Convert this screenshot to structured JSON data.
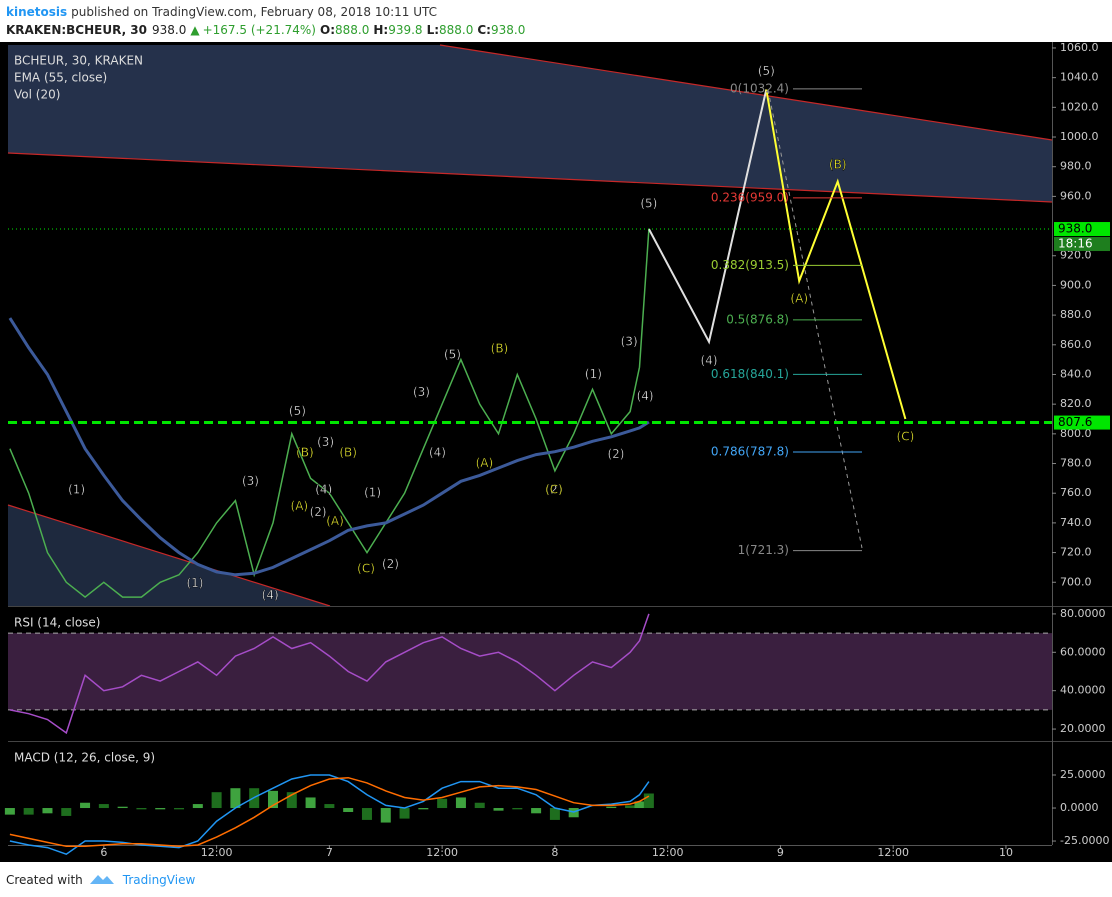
{
  "header": {
    "author": "kinetosis",
    "published": "published on TradingView.com, February 08, 2018 10:11 UTC"
  },
  "ticker": {
    "symbol": "KRAKEN:BCHEUR, 30",
    "last": "938.0",
    "arrow": "▲",
    "change": "+167.5 (+21.74%)",
    "ohlc": [
      {
        "label": "O:",
        "value": "888.0"
      },
      {
        "label": "H:",
        "value": "939.8"
      },
      {
        "label": "L:",
        "value": "888.0"
      },
      {
        "label": "C:",
        "value": "938.0"
      }
    ]
  },
  "footer": {
    "created": "Created with",
    "brand": "TradingView"
  },
  "chart_data": [
    {
      "type": "line",
      "title": "BCHEUR, 30, KRAKEN",
      "volume_label": "Vol (20)",
      "x": [
        14,
        16,
        18,
        20,
        22,
        24,
        26,
        28,
        30,
        32,
        34,
        36,
        38,
        40,
        42,
        44,
        46,
        48,
        50,
        52,
        54,
        56,
        58,
        60,
        62,
        64,
        66,
        68,
        70,
        72,
        74,
        76,
        78,
        80,
        81,
        82
      ],
      "xlim": [
        13.8,
        124.9
      ],
      "ylim": [
        684,
        1062
      ],
      "yticks": [
        {
          "value": 700,
          "label": "700.0"
        },
        {
          "value": 720,
          "label": "720.0"
        },
        {
          "value": 740,
          "label": "740.0"
        },
        {
          "value": 760,
          "label": "760.0"
        },
        {
          "value": 780,
          "label": "780.0"
        },
        {
          "value": 800,
          "label": "800.0"
        },
        {
          "value": 820,
          "label": "820.0"
        },
        {
          "value": 840,
          "label": "840.0"
        },
        {
          "value": 860,
          "label": "860.0"
        },
        {
          "value": 880,
          "label": "880.0"
        },
        {
          "value": 900,
          "label": "900.0"
        },
        {
          "value": 920,
          "label": "920.0"
        },
        {
          "value": 960,
          "label": "960.0"
        },
        {
          "value": 980,
          "label": "980.0"
        },
        {
          "value": 1000,
          "label": "1000.0"
        },
        {
          "value": 1020,
          "label": "1020.0"
        },
        {
          "value": 1040,
          "label": "1040.0"
        },
        {
          "value": 1060,
          "label": "1060.0"
        }
      ],
      "series": [
        {
          "color": "#4caf50",
          "values": [
            790,
            760,
            720,
            700,
            690,
            700,
            690,
            690,
            700,
            705,
            720,
            740,
            755,
            705,
            740,
            800,
            770,
            760,
            740,
            720,
            740,
            760,
            790,
            820,
            850,
            820,
            800,
            840,
            810,
            775,
            800,
            830,
            800,
            815,
            845,
            938
          ]
        },
        {
          "name": "EMA (55, close)",
          "color": "#3c5a9a",
          "values": [
            878,
            858,
            840,
            815,
            790,
            772,
            755,
            742,
            730,
            720,
            712,
            707,
            705,
            706,
            710,
            716,
            722,
            728,
            735,
            738,
            740,
            746,
            752,
            760,
            768,
            772,
            777,
            782,
            786,
            788,
            791,
            795,
            798,
            802,
            804,
            808
          ]
        }
      ],
      "projections": [
        {
          "color": "#e0e0e0",
          "x": [
            82,
            88.4,
            94.5
          ],
          "values": [
            938,
            862,
            1032
          ]
        },
        {
          "color": "#ffff33",
          "x": [
            94.5,
            98,
            102.1,
            109.3
          ],
          "values": [
            1032,
            903,
            970,
            810
          ]
        }
      ],
      "fib_levels": [
        {
          "label": "0(1032.4)",
          "value": 1032.4,
          "color": "#888888"
        },
        {
          "label": "0.236(959.0)",
          "value": 959.0,
          "color": "#e53935"
        },
        {
          "label": "0.382(913.5)",
          "value": 913.5,
          "color": "#9acd32"
        },
        {
          "label": "0.5(876.8)",
          "value": 876.8,
          "color": "#4caf50"
        },
        {
          "label": "0.618(840.1)",
          "value": 840.1,
          "color": "#26a69a"
        },
        {
          "label": "0.786(787.8)",
          "value": 787.8,
          "color": "#42a5f5"
        },
        {
          "label": "1(721.3)",
          "value": 721.3,
          "color": "#888888"
        }
      ],
      "price_labels": [
        {
          "label": "938.0",
          "value": 938.0,
          "style": "dotted",
          "countdown": "18:16"
        },
        {
          "label": "807.6",
          "value": 807.6,
          "style": "dashed"
        }
      ],
      "level_color": "#00e600",
      "annotations": [
        {
          "text": "(5)",
          "x": 94.5,
          "y": 1044,
          "color": "#ffffff"
        },
        {
          "text": "(5)",
          "x": 82.0,
          "y": 955,
          "color": "#ffffff"
        },
        {
          "text": "(B)",
          "x": 102.1,
          "y": 981,
          "color": "#ffff33"
        },
        {
          "text": "(A)",
          "x": 98.0,
          "y": 891,
          "color": "#ffff33"
        },
        {
          "text": "(4)",
          "x": 88.4,
          "y": 849,
          "color": "#ffffff"
        },
        {
          "text": "(C)",
          "x": 109.3,
          "y": 798,
          "color": "#ffff33"
        },
        {
          "text": "(3)",
          "x": 79.9,
          "y": 862,
          "color": "#ffffff"
        },
        {
          "text": "(4)",
          "x": 81.6,
          "y": 825,
          "color": "#ffffff"
        },
        {
          "text": "(1)",
          "x": 76.1,
          "y": 840,
          "color": "#ffffff"
        },
        {
          "text": "(2)",
          "x": 78.5,
          "y": 786,
          "color": "#ffffff"
        },
        {
          "text": "(B)",
          "x": 66.1,
          "y": 857,
          "color": "#ffff33"
        },
        {
          "text": "(A)",
          "x": 64.5,
          "y": 780,
          "color": "#ffff33"
        },
        {
          "text": "(5)",
          "x": 61.1,
          "y": 853,
          "color": "#ffffff"
        },
        {
          "text": "(3)",
          "x": 57.8,
          "y": 828,
          "color": "#ffffff"
        },
        {
          "text": "(4)",
          "x": 59.5,
          "y": 787,
          "color": "#ffffff"
        },
        {
          "text": "(2)",
          "x": 71.9,
          "y": 762,
          "color": "#ffffff"
        },
        {
          "text": "(C)",
          "x": 71.9,
          "y": 762,
          "color": "#ffff33"
        },
        {
          "text": "(1)",
          "x": 52.6,
          "y": 760,
          "color": "#ffffff"
        },
        {
          "text": "(2)",
          "x": 54.5,
          "y": 712,
          "color": "#ffffff"
        },
        {
          "text": "(C)",
          "x": 51.9,
          "y": 709,
          "color": "#ffff33"
        },
        {
          "text": "(B)",
          "x": 50.0,
          "y": 787,
          "color": "#ffff33"
        },
        {
          "text": "(5)",
          "x": 44.6,
          "y": 815,
          "color": "#ffffff"
        },
        {
          "text": "(B)",
          "x": 45.4,
          "y": 787,
          "color": "#ffff33"
        },
        {
          "text": "(3)",
          "x": 39.6,
          "y": 768,
          "color": "#ffffff"
        },
        {
          "text": "(4)",
          "x": 41.7,
          "y": 691,
          "color": "#ffffff"
        },
        {
          "text": "(1)",
          "x": 33.7,
          "y": 699,
          "color": "#ffffff"
        },
        {
          "text": "(1)",
          "x": 21.1,
          "y": 762,
          "color": "#ffffff"
        },
        {
          "text": "(A)",
          "x": 44.8,
          "y": 751,
          "color": "#ffff33"
        },
        {
          "text": "(A)",
          "x": 48.6,
          "y": 741,
          "color": "#ffff33"
        },
        {
          "text": "(3)",
          "x": 47.6,
          "y": 794,
          "color": "#ffffff"
        },
        {
          "text": "(2)",
          "x": 46.8,
          "y": 747,
          "color": "#ffffff"
        },
        {
          "text": "(4)",
          "x": 47.4,
          "y": 762,
          "color": "#ffffff"
        }
      ]
    },
    {
      "type": "line",
      "title": "RSI (14, close)",
      "x": [
        14,
        16,
        18,
        20,
        22,
        24,
        26,
        28,
        30,
        32,
        34,
        36,
        38,
        40,
        42,
        44,
        46,
        48,
        50,
        52,
        54,
        56,
        58,
        60,
        62,
        64,
        66,
        68,
        70,
        72,
        74,
        76,
        78,
        80,
        81,
        82
      ],
      "xlim": [
        13.8,
        124.9
      ],
      "ylim": [
        14.3,
        83.6
      ],
      "yticks": [
        {
          "value": 20,
          "label": "20.0000"
        },
        {
          "value": 40,
          "label": "40.0000"
        },
        {
          "value": 60,
          "label": "60.0000"
        },
        {
          "value": 80,
          "label": "80.0000"
        }
      ],
      "bands": [
        30,
        70
      ],
      "band_color": "#3a1f3f",
      "series": [
        {
          "color": "#a64dc8",
          "values": [
            30,
            28,
            25,
            18,
            48,
            40,
            42,
            48,
            45,
            50,
            55,
            48,
            58,
            62,
            68,
            62,
            65,
            58,
            50,
            45,
            55,
            60,
            65,
            68,
            62,
            58,
            60,
            55,
            48,
            40,
            48,
            55,
            52,
            60,
            66,
            80
          ]
        }
      ]
    },
    {
      "type": "line",
      "title": "MACD (12, 26, close, 9)",
      "x": [
        14,
        16,
        18,
        20,
        22,
        24,
        26,
        28,
        30,
        32,
        34,
        36,
        38,
        40,
        42,
        44,
        46,
        48,
        50,
        52,
        54,
        56,
        58,
        60,
        62,
        64,
        66,
        68,
        70,
        72,
        74,
        76,
        78,
        80,
        81,
        82
      ],
      "xlim": [
        13.8,
        124.9
      ],
      "ylim": [
        -28,
        50
      ],
      "yticks": [
        {
          "value": -25,
          "label": "-25.0000"
        },
        {
          "value": 0,
          "label": "0.0000"
        },
        {
          "value": 25,
          "label": "25.0000"
        }
      ],
      "xticks": [
        {
          "value": 24,
          "label": "6"
        },
        {
          "value": 36,
          "label": "12:00"
        },
        {
          "value": 48,
          "label": "7"
        },
        {
          "value": 60,
          "label": "12:00"
        },
        {
          "value": 72,
          "label": "8"
        },
        {
          "value": 84,
          "label": "12:00"
        },
        {
          "value": 96,
          "label": "9"
        },
        {
          "value": 108,
          "label": "12:00"
        },
        {
          "value": 120,
          "label": "10"
        }
      ],
      "series": [
        {
          "color": "#2196f3",
          "values": [
            -25,
            -28,
            -30,
            -35,
            -25,
            -25,
            -26,
            -28,
            -29,
            -30,
            -25,
            -10,
            0,
            8,
            15,
            22,
            25,
            25,
            20,
            10,
            2,
            0,
            5,
            15,
            20,
            20,
            15,
            15,
            10,
            0,
            -3,
            2,
            3,
            5,
            10,
            20
          ]
        },
        {
          "color": "#ff6d00",
          "values": [
            -20,
            -23,
            -26,
            -29,
            -29,
            -28,
            -27,
            -27,
            -28,
            -29,
            -28,
            -22,
            -15,
            -7,
            2,
            10,
            17,
            22,
            23,
            19,
            13,
            8,
            6,
            8,
            12,
            16,
            17,
            16,
            14,
            9,
            4,
            2,
            2,
            3,
            5,
            9
          ]
        }
      ],
      "histogram": {
        "colors": [
          "#3fa33f",
          "#1e6e1e"
        ],
        "values": [
          -5,
          -5,
          -4,
          -6,
          4,
          3,
          1,
          -1,
          -1,
          -1,
          3,
          12,
          15,
          15,
          13,
          12,
          8,
          3,
          -3,
          -9,
          -11,
          -8,
          -1,
          7,
          8,
          4,
          -2,
          -1,
          -4,
          -9,
          -7,
          0,
          1,
          2,
          5,
          11
        ]
      }
    }
  ]
}
